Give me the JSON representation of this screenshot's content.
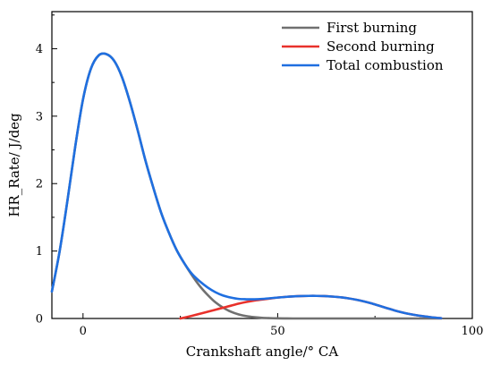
{
  "chart_data": {
    "type": "line",
    "xlabel": "Crankshaft angle/° CA",
    "ylabel": "HR_Rate/ J/deg",
    "xlim": [
      -8,
      100
    ],
    "ylim": [
      0,
      4.55
    ],
    "xticks": [
      0,
      50,
      100
    ],
    "yticks": [
      0,
      1,
      2,
      3,
      4
    ],
    "xtick_labels": [
      "0",
      "50",
      "100"
    ],
    "ytick_labels": [
      "0",
      "1",
      "2",
      "3",
      "4"
    ],
    "grid": false,
    "legend_position": "top-right",
    "series": [
      {
        "name": "First burning",
        "color": "#707070",
        "x": [
          -8,
          -6,
          -4,
          -2,
          0,
          2,
          4,
          6,
          8,
          10,
          12,
          14,
          16,
          18,
          20,
          22,
          24,
          26,
          28,
          30,
          32,
          34,
          36,
          38,
          40,
          42,
          44,
          46,
          48,
          50,
          52,
          54,
          56,
          58,
          60,
          65,
          70,
          80,
          90,
          92
        ],
        "y": [
          0.4,
          1.0,
          1.75,
          2.55,
          3.25,
          3.7,
          3.9,
          3.92,
          3.82,
          3.58,
          3.22,
          2.8,
          2.35,
          1.95,
          1.58,
          1.28,
          1.02,
          0.82,
          0.64,
          0.48,
          0.35,
          0.24,
          0.16,
          0.1,
          0.06,
          0.035,
          0.02,
          0.01,
          0.005,
          0.002,
          0.001,
          0,
          0,
          0,
          0,
          0,
          0,
          0,
          0,
          0
        ]
      },
      {
        "name": "Second burning",
        "color": "#e8312b",
        "x": [
          25,
          28,
          30,
          32,
          34,
          36,
          38,
          40,
          42,
          44,
          46,
          48,
          50,
          52,
          54,
          56,
          58,
          60,
          62,
          64,
          66,
          68,
          70,
          72,
          74,
          76,
          78,
          80,
          82,
          84,
          86,
          88,
          90,
          92
        ],
        "y": [
          0,
          0.04,
          0.07,
          0.1,
          0.13,
          0.16,
          0.19,
          0.22,
          0.245,
          0.265,
          0.28,
          0.295,
          0.31,
          0.32,
          0.328,
          0.333,
          0.335,
          0.335,
          0.332,
          0.325,
          0.315,
          0.3,
          0.28,
          0.255,
          0.225,
          0.19,
          0.155,
          0.12,
          0.09,
          0.065,
          0.045,
          0.03,
          0.015,
          0.005
        ]
      },
      {
        "name": "Total combustion",
        "color": "#1f6fe0",
        "x": [
          -8,
          -6,
          -4,
          -2,
          0,
          2,
          4,
          6,
          8,
          10,
          12,
          14,
          16,
          18,
          20,
          22,
          24,
          26,
          28,
          30,
          32,
          34,
          36,
          38,
          40,
          42,
          44,
          46,
          48,
          50,
          52,
          54,
          56,
          58,
          60,
          62,
          64,
          66,
          68,
          70,
          72,
          74,
          76,
          78,
          80,
          82,
          84,
          86,
          88,
          90,
          92
        ],
        "y": [
          0.4,
          1.0,
          1.75,
          2.55,
          3.25,
          3.7,
          3.9,
          3.92,
          3.82,
          3.58,
          3.22,
          2.8,
          2.35,
          1.95,
          1.58,
          1.28,
          1.02,
          0.82,
          0.66,
          0.55,
          0.46,
          0.39,
          0.34,
          0.31,
          0.29,
          0.285,
          0.285,
          0.29,
          0.3,
          0.31,
          0.32,
          0.328,
          0.333,
          0.335,
          0.335,
          0.332,
          0.325,
          0.315,
          0.3,
          0.28,
          0.255,
          0.225,
          0.19,
          0.155,
          0.12,
          0.09,
          0.065,
          0.045,
          0.03,
          0.015,
          0.005
        ]
      }
    ]
  }
}
